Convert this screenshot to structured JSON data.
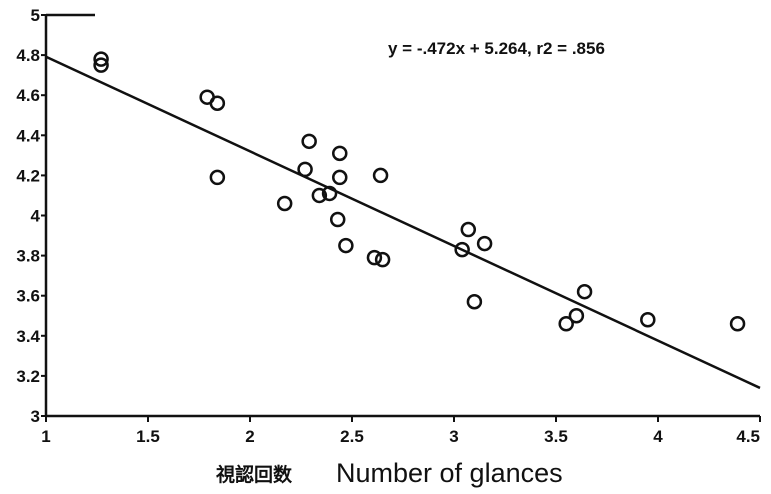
{
  "chart_data": {
    "type": "scatter",
    "title": "",
    "xlabel_japanese": "視認回数",
    "xlabel": "Number of glances",
    "ylabel": "",
    "xlim": [
      1,
      4.5
    ],
    "ylim": [
      3,
      5
    ],
    "x_ticks": [
      "1",
      "1.5",
      "2",
      "2.5",
      "3",
      "3.5",
      "4",
      "4.5"
    ],
    "y_ticks": [
      "3",
      "3.2",
      "3.4",
      "3.6",
      "3.8",
      "4",
      "4.2",
      "4.4",
      "4.6",
      "4.8",
      "5"
    ],
    "grid": false,
    "legend": "none",
    "annotation": "y = -.472x + 5.264, r2 = .856",
    "regression": {
      "slope": -0.472,
      "intercept": 5.264,
      "r2": 0.856
    },
    "points": [
      {
        "x": 1.27,
        "y": 4.78
      },
      {
        "x": 1.27,
        "y": 4.75
      },
      {
        "x": 1.79,
        "y": 4.59
      },
      {
        "x": 1.84,
        "y": 4.56
      },
      {
        "x": 1.84,
        "y": 4.19
      },
      {
        "x": 2.17,
        "y": 4.06
      },
      {
        "x": 2.27,
        "y": 4.23
      },
      {
        "x": 2.29,
        "y": 4.37
      },
      {
        "x": 2.34,
        "y": 4.1
      },
      {
        "x": 2.39,
        "y": 4.11
      },
      {
        "x": 2.43,
        "y": 3.98
      },
      {
        "x": 2.44,
        "y": 4.31
      },
      {
        "x": 2.44,
        "y": 4.19
      },
      {
        "x": 2.47,
        "y": 3.85
      },
      {
        "x": 2.61,
        "y": 3.79
      },
      {
        "x": 2.64,
        "y": 4.2
      },
      {
        "x": 2.65,
        "y": 3.78
      },
      {
        "x": 3.04,
        "y": 3.83
      },
      {
        "x": 3.07,
        "y": 3.93
      },
      {
        "x": 3.1,
        "y": 3.57
      },
      {
        "x": 3.15,
        "y": 3.86
      },
      {
        "x": 3.55,
        "y": 3.46
      },
      {
        "x": 3.6,
        "y": 3.5
      },
      {
        "x": 3.64,
        "y": 3.62
      },
      {
        "x": 3.95,
        "y": 3.48
      },
      {
        "x": 4.39,
        "y": 3.46
      }
    ]
  }
}
